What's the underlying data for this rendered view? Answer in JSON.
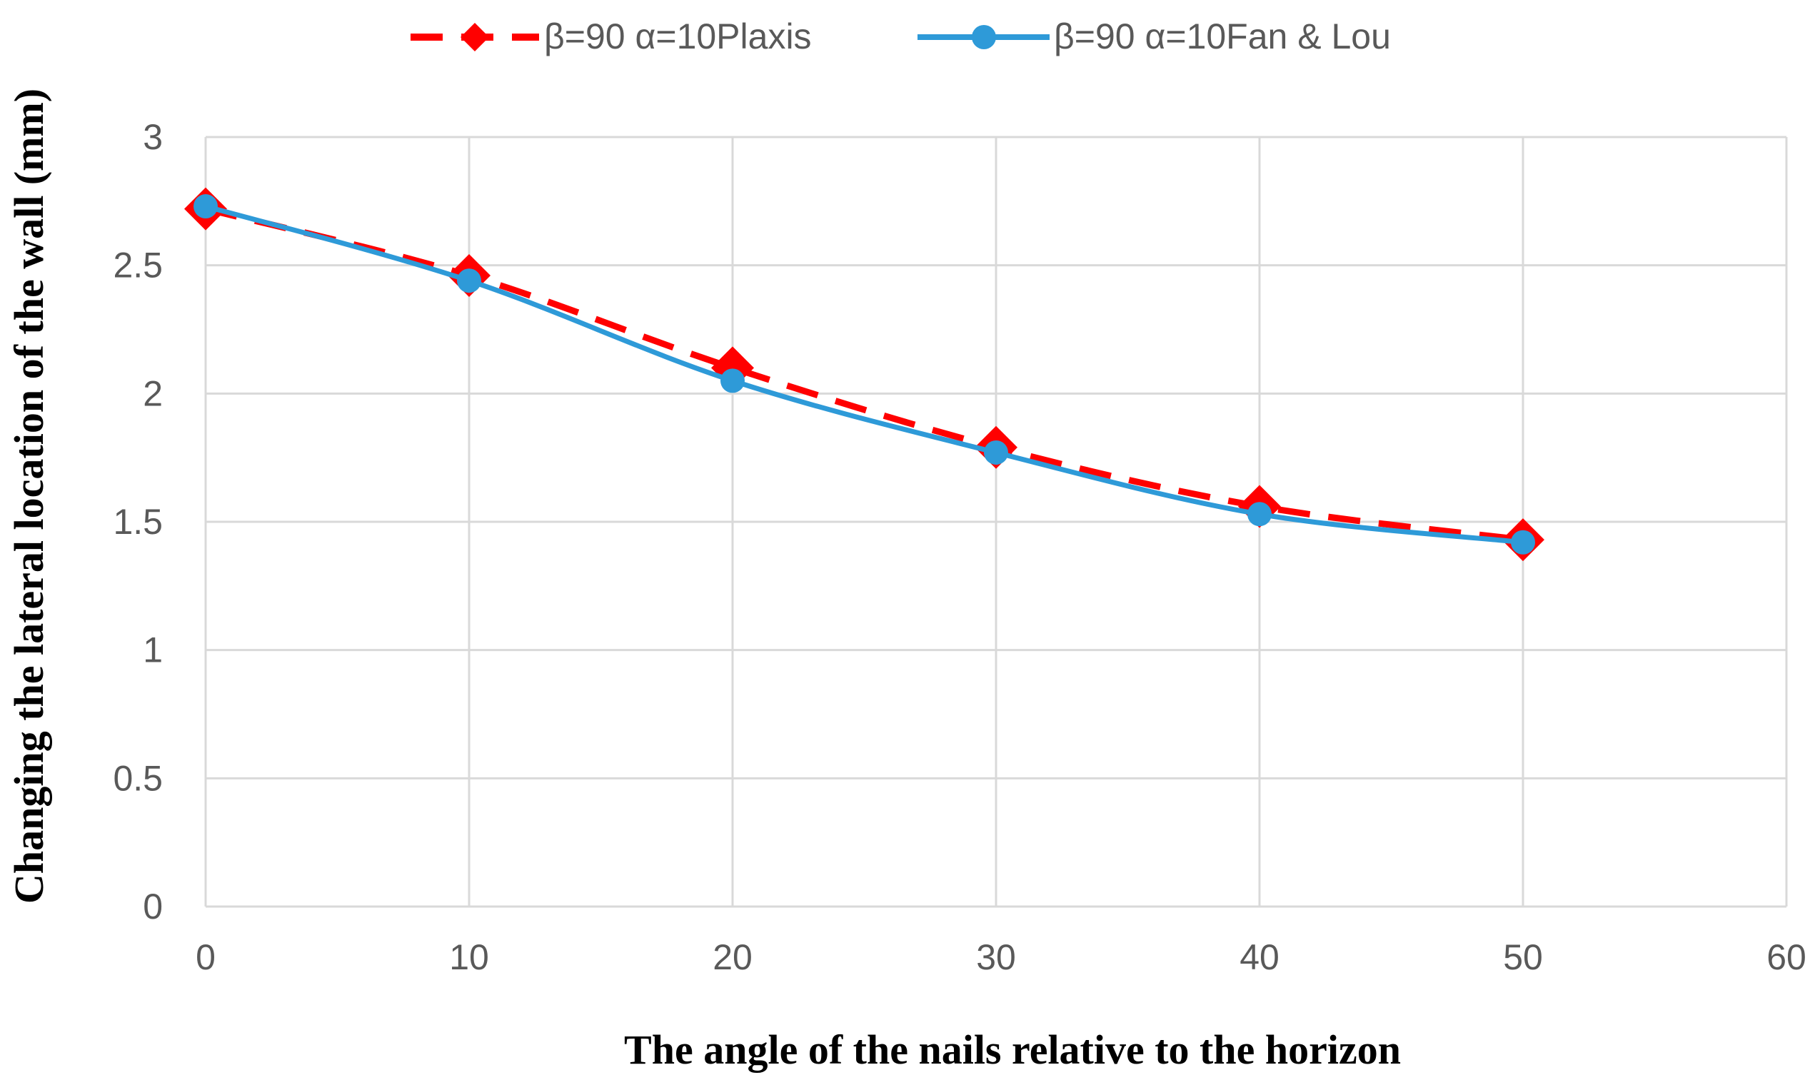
{
  "chart_data": {
    "type": "line",
    "title": "",
    "xlabel": "The angle of the nails relative to the horizon",
    "ylabel": "Changing the lateral location of the wall (mm)",
    "xlim": [
      0,
      60
    ],
    "ylim": [
      0,
      3
    ],
    "x_ticks": [
      "0",
      "10",
      "20",
      "30",
      "40",
      "50",
      "60"
    ],
    "y_ticks": [
      "0",
      "0.5",
      "1",
      "1.5",
      "2",
      "2.5",
      "3"
    ],
    "grid": true,
    "legend_position": "top",
    "series": [
      {
        "name": "β=90 α=10Plaxis",
        "style": "dashed",
        "marker": "diamond",
        "color": "#ff0000",
        "x": [
          0,
          10,
          20,
          30,
          40,
          50
        ],
        "values": [
          2.72,
          2.46,
          2.1,
          1.79,
          1.56,
          1.43
        ]
      },
      {
        "name": "β=90 α=10Fan & Lou",
        "style": "solid",
        "marker": "circle",
        "color": "#2e9ad8",
        "x": [
          0,
          10,
          20,
          30,
          40,
          50
        ],
        "values": [
          2.73,
          2.44,
          2.05,
          1.77,
          1.53,
          1.42
        ]
      }
    ]
  }
}
